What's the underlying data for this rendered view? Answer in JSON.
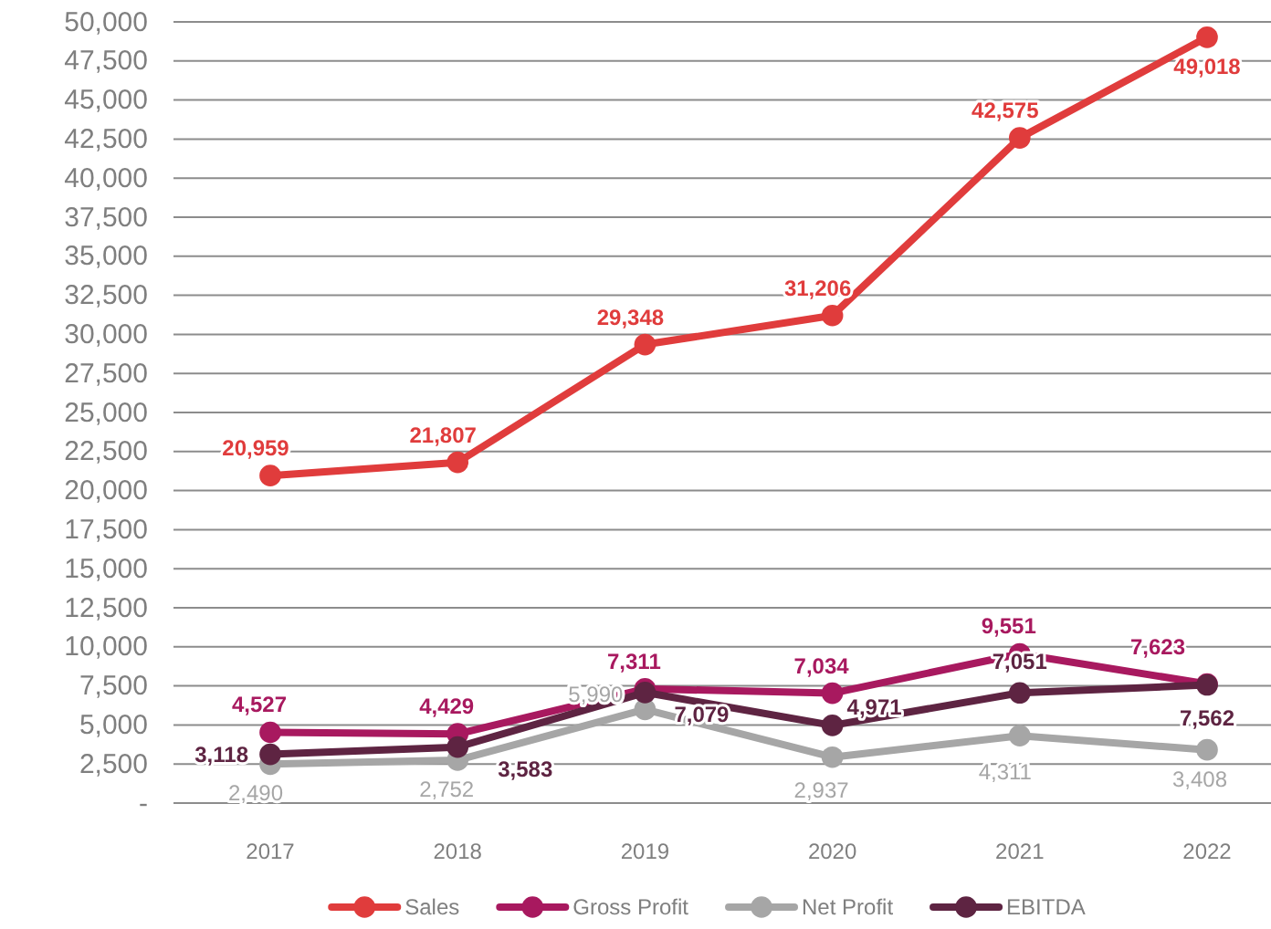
{
  "chart_data": {
    "type": "line",
    "categories": [
      "2017",
      "2018",
      "2019",
      "2020",
      "2021",
      "2022"
    ],
    "series": [
      {
        "name": "Sales",
        "color": "#e03c3c",
        "values": [
          20959,
          21807,
          29348,
          31206,
          42575,
          49018
        ],
        "value_labels": [
          "20,959",
          "21,807",
          "29,348",
          "31,206",
          "42,575",
          "49,018"
        ]
      },
      {
        "name": "Gross Profit",
        "color": "#a8195f",
        "values": [
          4527,
          4429,
          7311,
          7034,
          9551,
          7623
        ],
        "value_labels": [
          "4,527",
          "4,429",
          "7,311",
          "7,034",
          "9,551",
          "7,623"
        ]
      },
      {
        "name": "Net Profit",
        "color": "#a6a6a6",
        "values": [
          2490,
          2752,
          5990,
          2937,
          4311,
          3408
        ],
        "value_labels": [
          "2,490",
          "2,752",
          "5,990",
          "2,937",
          "4,311",
          "3,408"
        ]
      },
      {
        "name": "EBITDA",
        "color": "#5e2442",
        "values": [
          3118,
          3583,
          7079,
          4971,
          7051,
          7562
        ],
        "value_labels": [
          "3,118",
          "3,583",
          "7,079",
          "4,971",
          "7,051",
          "7,562"
        ]
      }
    ],
    "ylim": [
      0,
      50000
    ],
    "yticks": [
      {
        "value": 0,
        "label": "-"
      },
      {
        "value": 2500,
        "label": "2,500"
      },
      {
        "value": 5000,
        "label": "5,000"
      },
      {
        "value": 7500,
        "label": "7,500"
      },
      {
        "value": 10000,
        "label": "10,000"
      },
      {
        "value": 12500,
        "label": "12,500"
      },
      {
        "value": 15000,
        "label": "15,000"
      },
      {
        "value": 17500,
        "label": "17,500"
      },
      {
        "value": 20000,
        "label": "20,000"
      },
      {
        "value": 22500,
        "label": "22,500"
      },
      {
        "value": 25000,
        "label": "25,000"
      },
      {
        "value": 27500,
        "label": "27,500"
      },
      {
        "value": 30000,
        "label": "30,000"
      },
      {
        "value": 32500,
        "label": "32,500"
      },
      {
        "value": 35000,
        "label": "35,000"
      },
      {
        "value": 37500,
        "label": "37,500"
      },
      {
        "value": 40000,
        "label": "40,000"
      },
      {
        "value": 42500,
        "label": "42,500"
      },
      {
        "value": 45000,
        "label": "45,000"
      },
      {
        "value": 47500,
        "label": "47,500"
      },
      {
        "value": 50000,
        "label": "50,000"
      }
    ],
    "grid": "y",
    "legend": "bottom",
    "marker": "circle",
    "line_style": "solid"
  }
}
